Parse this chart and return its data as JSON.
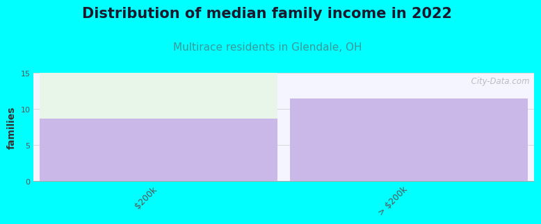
{
  "title": "Distribution of median family income in 2022",
  "subtitle": "Multirace residents in Glendale, OH",
  "categories": [
    "$200k",
    "> $200k"
  ],
  "values": [
    8.7,
    11.4
  ],
  "bar_color": "#c9b8e8",
  "light_green_color": "#e8f5e9",
  "background_color": "#00ffff",
  "plot_bg_color": "#f5f5ff",
  "title_color": "#1a1a2e",
  "subtitle_color": "#3a9a9a",
  "ylabel": "families",
  "ylim": [
    0,
    15
  ],
  "yticks": [
    0,
    5,
    10,
    15
  ],
  "watermark": "  City-Data.com",
  "title_fontsize": 15,
  "subtitle_fontsize": 11,
  "ylabel_fontsize": 10,
  "bar_width": 0.95,
  "bar_gap": 0.05
}
